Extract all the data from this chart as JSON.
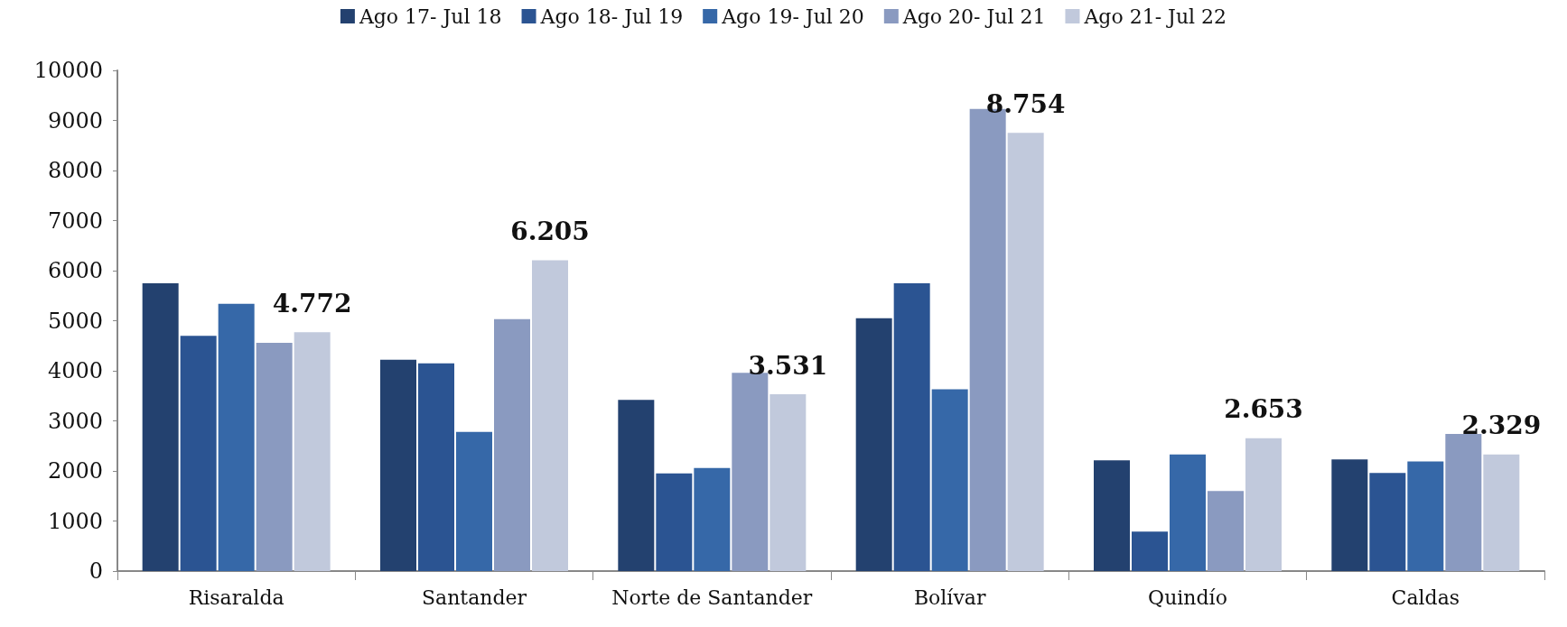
{
  "chart_data": {
    "type": "bar",
    "categories": [
      "Risaralda",
      "Santander",
      "Norte de Santander",
      "Bolívar",
      "Quindío",
      "Caldas"
    ],
    "series": [
      {
        "name": "Ago 17- Jul 18",
        "color": "#23416f",
        "values": [
          5750,
          4220,
          3420,
          5050,
          2210,
          2230
        ]
      },
      {
        "name": "Ago 18- Jul 19",
        "color": "#2b5492",
        "values": [
          4700,
          4150,
          1950,
          5750,
          790,
          1960
        ]
      },
      {
        "name": "Ago 19- Jul 20",
        "color": "#3668a8",
        "values": [
          5340,
          2780,
          2060,
          3630,
          2330,
          2190
        ]
      },
      {
        "name": "Ago 20- Jul 21",
        "color": "#8a9ac0",
        "values": [
          4560,
          5030,
          3960,
          9230,
          1600,
          2740
        ]
      },
      {
        "name": "Ago 21- Jul 22",
        "color": "#c1c9dc",
        "values": [
          4772,
          6205,
          3531,
          8754,
          2653,
          2329
        ],
        "value_labels": [
          "4.772",
          "6.205",
          "3.531",
          "8.754",
          "2.653",
          "2.329"
        ]
      }
    ],
    "ylim": [
      0,
      10000
    ],
    "yticks": [
      0,
      1000,
      2000,
      3000,
      4000,
      5000,
      6000,
      7000,
      8000,
      9000,
      10000
    ],
    "grid": false,
    "legend": "top"
  }
}
